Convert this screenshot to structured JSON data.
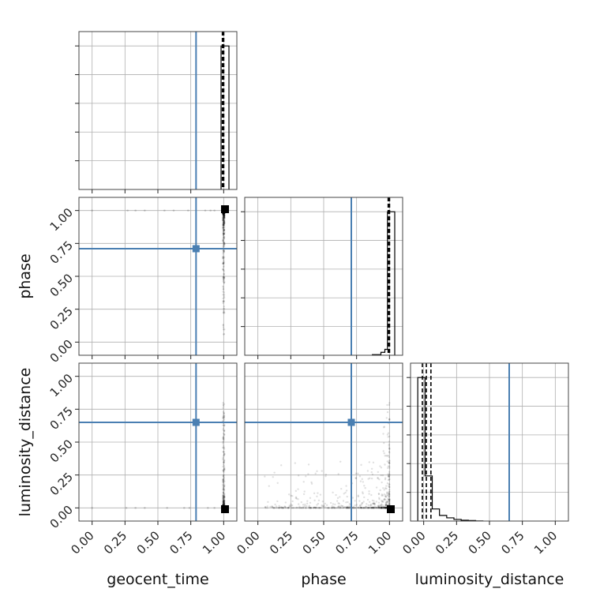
{
  "chart_data": {
    "type": "corner",
    "parameters": [
      "geocent_time",
      "phase",
      "luminosity_distance"
    ],
    "axis_labels": {
      "geocent_time": "geocent_time",
      "phase": "phase",
      "luminosity_distance": "luminosity_distance"
    },
    "range": [
      -0.1,
      1.1
    ],
    "ticks": [
      0.0,
      0.25,
      0.5,
      0.75,
      1.0
    ],
    "tick_labels": [
      "0.00",
      "0.25",
      "0.50",
      "0.75",
      "1.00"
    ],
    "grid": true,
    "colors": {
      "truth": "#4a7fb2",
      "hist": "#000000",
      "samples": "#000000"
    },
    "truths": {
      "geocent_time": 0.79,
      "phase": 0.71,
      "luminosity_distance": 0.65
    },
    "quantiles": {
      "geocent_time": [
        0.99,
        1.0,
        1.0
      ],
      "phase": [
        0.99,
        1.0,
        1.0
      ],
      "luminosity_distance": [
        -0.01,
        0.02,
        0.055
      ]
    },
    "histograms": {
      "geocent_time": {
        "bin_edges": [
          0.98,
          1.04
        ],
        "counts": [
          1.0
        ]
      },
      "phase": {
        "bin_edges": [
          0.87,
          0.935,
          0.965,
          0.985,
          1.04
        ],
        "counts": [
          0.004,
          0.02,
          0.04,
          0.97
        ]
      },
      "luminosity_distance": {
        "bin_edges": [
          -0.045,
          0.01,
          0.065,
          0.12,
          0.175,
          0.23,
          0.285,
          0.34,
          0.395,
          0.45
        ],
        "counts": [
          0.89,
          0.28,
          0.075,
          0.035,
          0.02,
          0.01,
          0.005,
          0.003,
          0.001
        ]
      }
    },
    "scatter": {
      "phase_vs_geocent_time": {
        "sparse_points": [
          [
            0.0,
            1.0
          ],
          [
            0.27,
            1.0
          ],
          [
            0.33,
            1.0
          ],
          [
            0.4,
            1.0
          ],
          [
            0.55,
            1.0
          ],
          [
            0.62,
            1.0
          ],
          [
            0.73,
            1.0
          ],
          [
            0.86,
            1.0
          ],
          [
            0.9,
            1.0
          ],
          [
            0.93,
            1.0
          ]
        ],
        "dense_column_x": 1.0,
        "dense_column_y_range": [
          0.05,
          1.0
        ],
        "peak": [
          1.01,
          1.01
        ]
      },
      "luminosity_distance_vs_geocent_time": {
        "sparse_points": [
          [
            0.0,
            0.0
          ],
          [
            0.26,
            0.0
          ],
          [
            0.33,
            0.0
          ],
          [
            0.4,
            0.0
          ],
          [
            0.57,
            0.0
          ],
          [
            0.7,
            0.0
          ],
          [
            0.74,
            0.0
          ],
          [
            0.88,
            0.0
          ],
          [
            0.93,
            0.0
          ]
        ],
        "dense_column_x": 1.0,
        "dense_column_y_range": [
          0.0,
          0.8
        ],
        "peak": [
          1.01,
          -0.01
        ]
      },
      "luminosity_distance_vs_phase": {
        "dense_x_range": [
          0.05,
          1.0
        ],
        "dense_y_range": [
          0.0,
          0.8
        ],
        "peak": [
          1.01,
          -0.01
        ]
      }
    }
  }
}
